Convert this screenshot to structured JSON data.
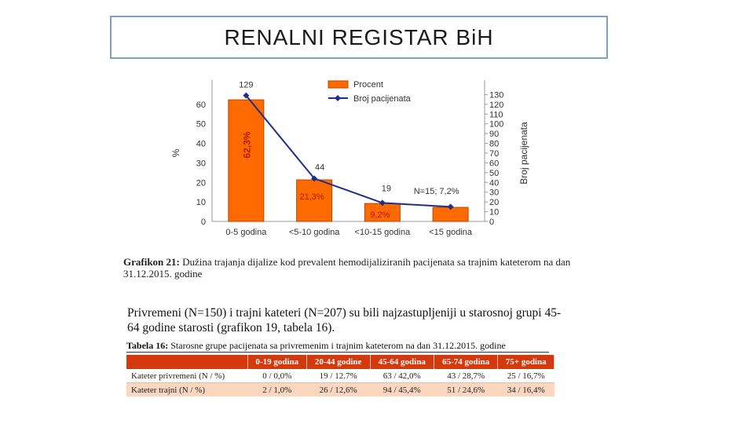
{
  "slide": {
    "title": "RENALNI REGISTAR BiH"
  },
  "chart_data": {
    "type": "bar",
    "categories": [
      "0-5 godina",
      "<5-10 godina",
      "<10-15 godina",
      "<15 godina"
    ],
    "series": [
      {
        "name": "Procent",
        "type": "bar",
        "axis": "left",
        "values": [
          62.3,
          21.3,
          9.2,
          7.2
        ],
        "data_labels": [
          "62,3%",
          "21,3%",
          "9,2%",
          "N=15; 7,2%"
        ]
      },
      {
        "name": "Broj pacijenata",
        "type": "line",
        "axis": "right",
        "values": [
          129,
          44,
          19,
          15
        ],
        "data_labels": [
          "129",
          "44",
          "19",
          ""
        ]
      }
    ],
    "ylabel": "%",
    "y2label": "Broj pacijenata",
    "ylim": [
      0,
      70
    ],
    "y_ticks": [
      0,
      10,
      20,
      30,
      40,
      50,
      60
    ],
    "y2lim": [
      0,
      140
    ],
    "y2_ticks": [
      0,
      10,
      20,
      30,
      40,
      50,
      60,
      70,
      80,
      90,
      100,
      110,
      120,
      130
    ],
    "legend_position": "top-right",
    "colors": {
      "bar": "#ff6a00",
      "bar_border": "#b84700",
      "line": "#1f2f8a",
      "pct_label": "#b11a00"
    }
  },
  "caption": {
    "label": "Grafikon 21:",
    "text": "Dužina trajanja dijalize kod prevalent hemodijaliziranih pacijenata sa trajnim kateterom na dan 31.12.2015. godine"
  },
  "paragraph": "Privremeni (N=150) i trajni kateteri (N=207) su bili najzastupljeniji u starosnoj grupi 45-64 godine starosti (grafikon 19, tabela 16).",
  "table": {
    "caption_label": "Tabela 16:",
    "caption_text": "Starosne grupe pacijenata sa privremenim i trajnim kateterom na dan 31.12.2015. godine",
    "headers": [
      "",
      "0-19 godina",
      "20-44 godine",
      "45-64 godina",
      "65-74 godina",
      "75+ godina"
    ],
    "rows": [
      [
        "Kateter privremeni (N / %)",
        "0 / 0,0%",
        "19 / 12.7%",
        "63 / 42,0%",
        "43 / 28,7%",
        "25 / 16,7%"
      ],
      [
        "Kateter trajni (N / %)",
        "2 / 1,0%",
        "26 / 12,6%",
        "94 / 45,4%",
        "51 / 24,6%",
        "34 / 16,4%"
      ]
    ]
  }
}
